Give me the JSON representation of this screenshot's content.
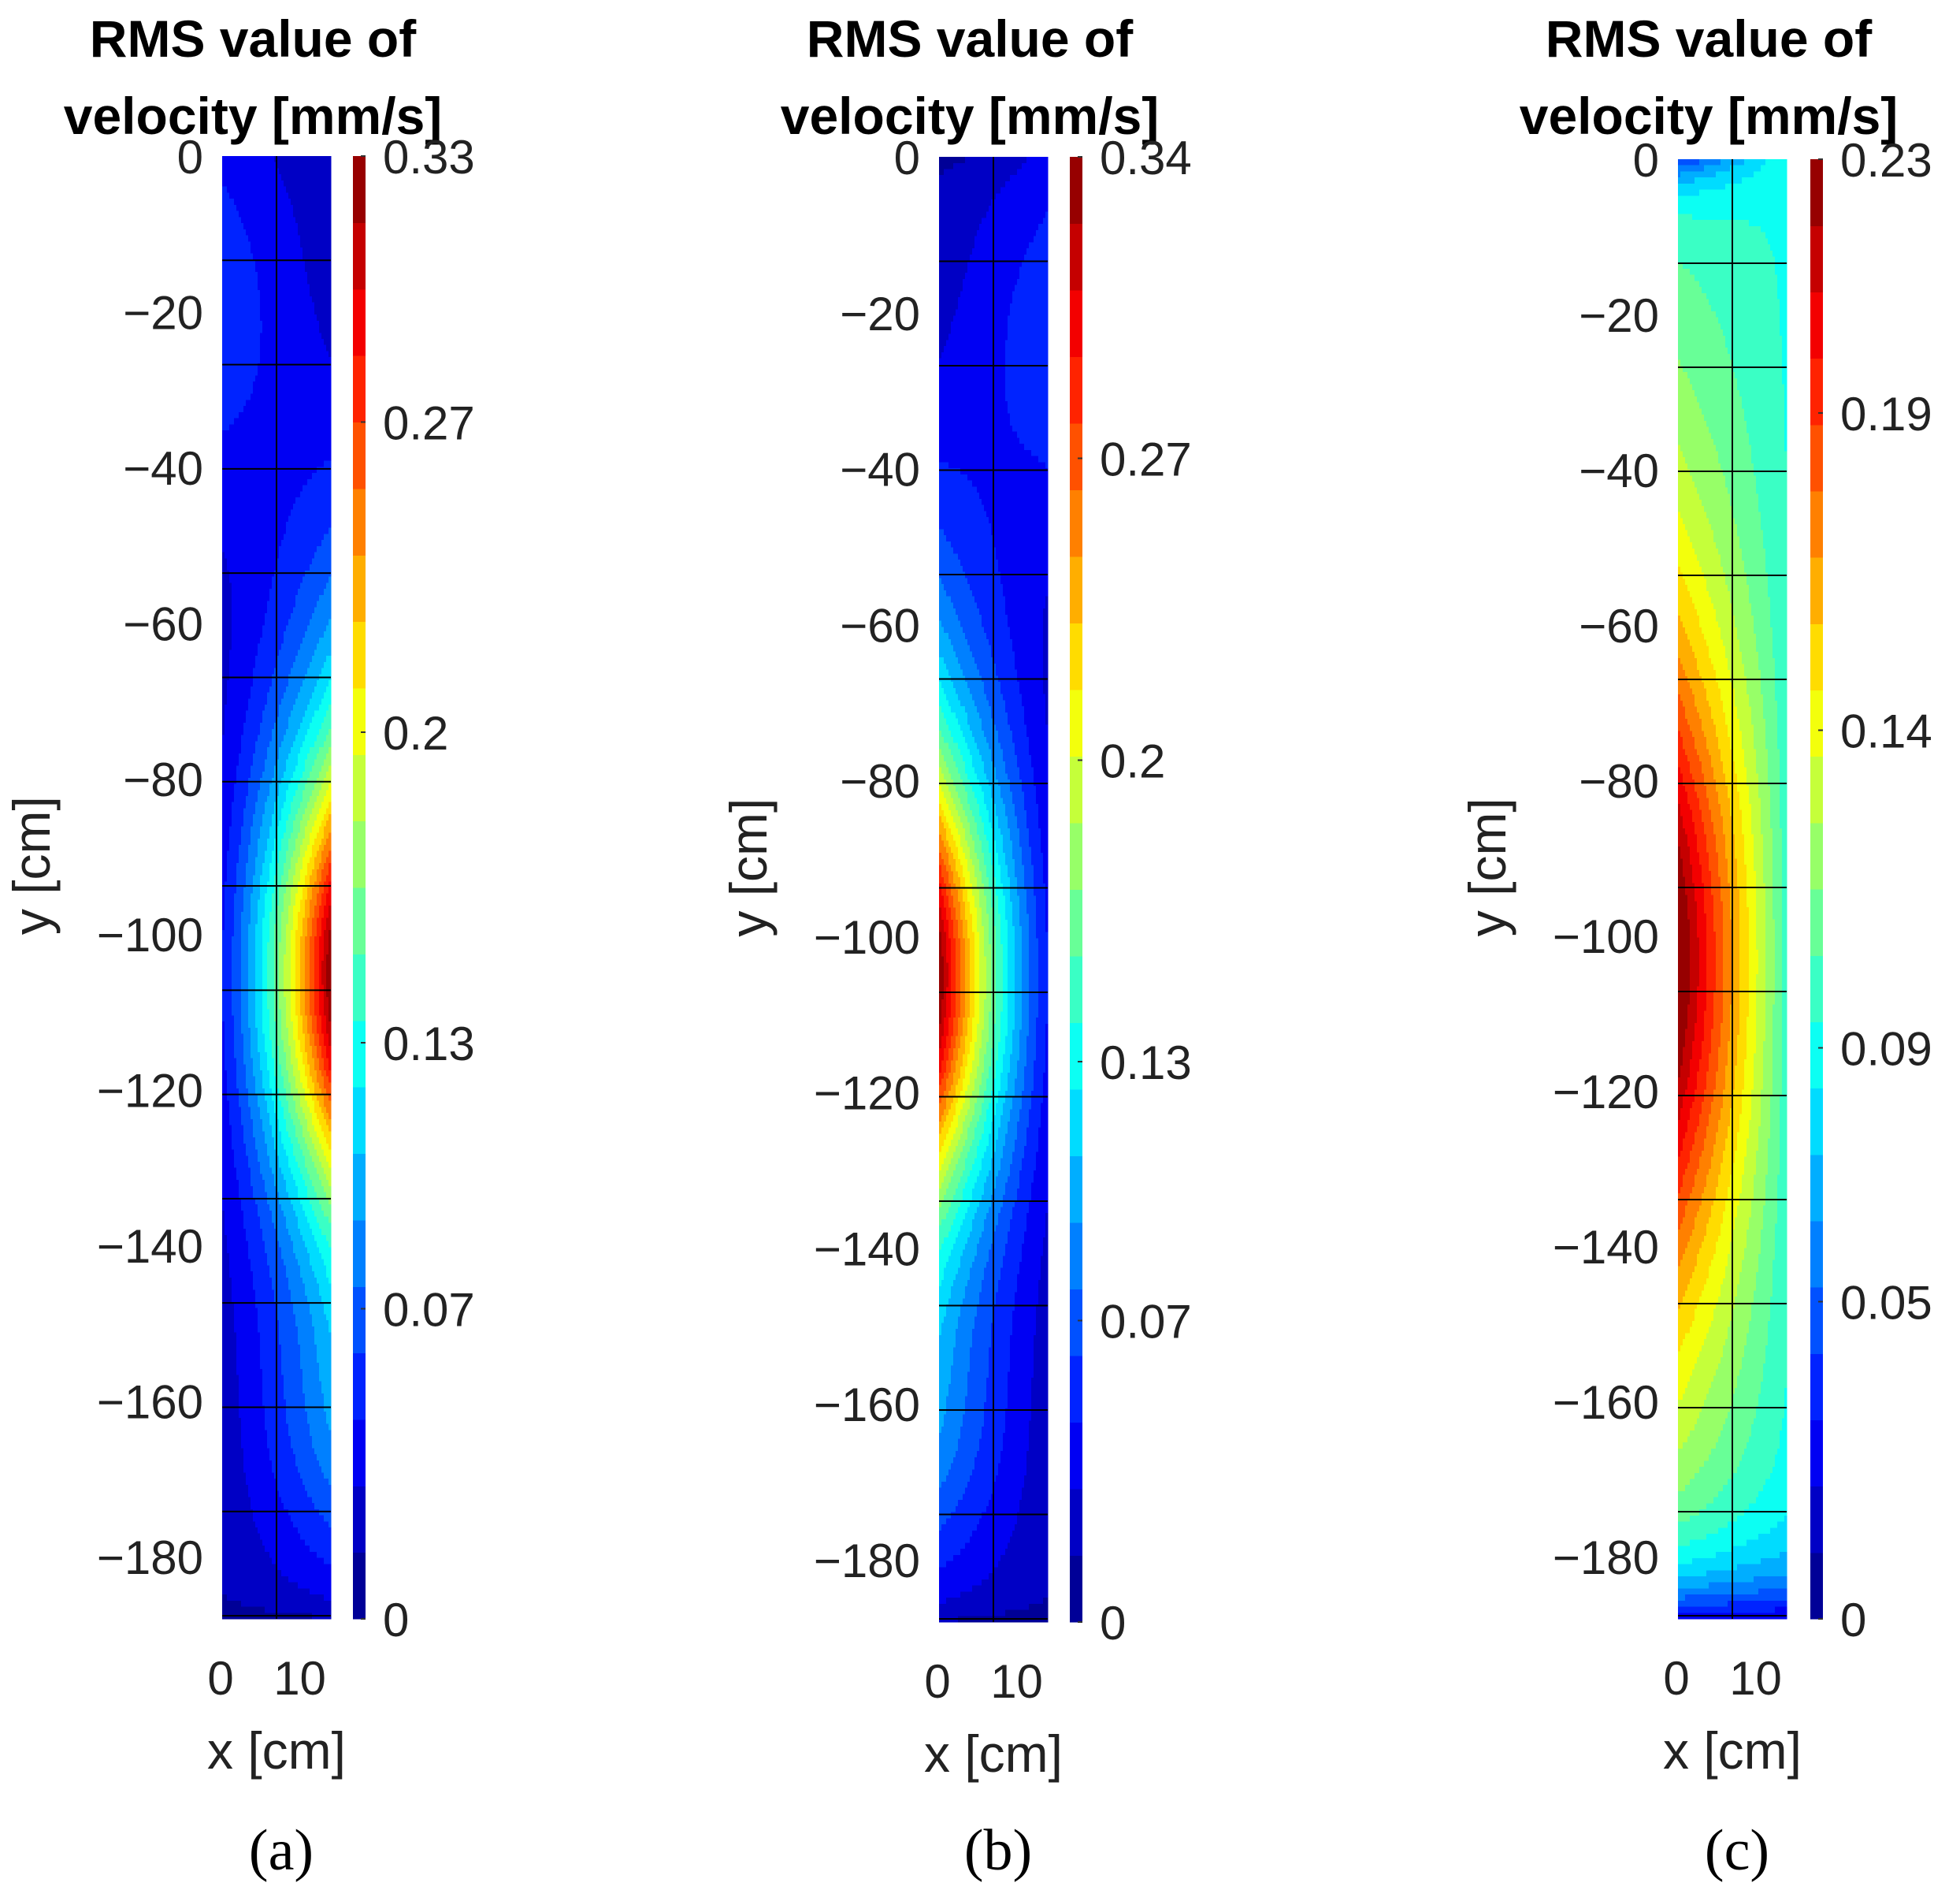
{
  "chart_data": [
    {
      "type": "heatmap",
      "panel_label": "(a)",
      "title_line1": "RMS value of",
      "title_line2": "velocity [mm/s]",
      "xlabel": "x [cm]",
      "ylabel": "y [cm]",
      "xlim": [
        0,
        14
      ],
      "ylim": [
        -188,
        0
      ],
      "xticks": [
        "0",
        "10"
      ],
      "yticks": [
        "0",
        "−20",
        "−40",
        "−60",
        "−80",
        "−100",
        "−120",
        "−140",
        "−160",
        "−180"
      ],
      "colorbar_range": [
        0,
        0.33
      ],
      "colorbar_ticks": [
        "0",
        "0.07",
        "0.13",
        "0.2",
        "0.27",
        "0.33"
      ],
      "peak": {
        "x": 14,
        "y": -105,
        "value": 0.33
      },
      "grid": true
    },
    {
      "type": "heatmap",
      "panel_label": "(b)",
      "title_line1": "RMS value of",
      "title_line2": "velocity [mm/s]",
      "xlabel": "x [cm]",
      "ylabel": "y [cm]",
      "xlim": [
        0,
        14
      ],
      "ylim": [
        -188,
        0
      ],
      "xticks": [
        "0",
        "10"
      ],
      "yticks": [
        "0",
        "−20",
        "−40",
        "−60",
        "−80",
        "−100",
        "−120",
        "−140",
        "−160",
        "−180"
      ],
      "colorbar_range": [
        0,
        0.34
      ],
      "colorbar_ticks": [
        "0",
        "0.07",
        "0.13",
        "0.2",
        "0.27",
        "0.34"
      ],
      "peak": {
        "x": 0,
        "y": -105,
        "value": 0.34
      },
      "grid": true
    },
    {
      "type": "heatmap",
      "panel_label": "(c)",
      "title_line1": "RMS value of",
      "title_line2": "velocity [mm/s]",
      "xlabel": "x [cm]",
      "ylabel": "y [cm]",
      "xlim": [
        0,
        14
      ],
      "ylim": [
        -188,
        0
      ],
      "xticks": [
        "0",
        "10"
      ],
      "yticks": [
        "0",
        "−20",
        "−40",
        "−60",
        "−80",
        "−100",
        "−120",
        "−140",
        "−160",
        "−180"
      ],
      "colorbar_range": [
        0,
        0.23
      ],
      "colorbar_ticks": [
        "0",
        "0.05",
        "0.09",
        "0.14",
        "0.19",
        "0.23"
      ],
      "peak": {
        "x": 0,
        "y": -105,
        "value": 0.23
      },
      "grid": true
    }
  ]
}
